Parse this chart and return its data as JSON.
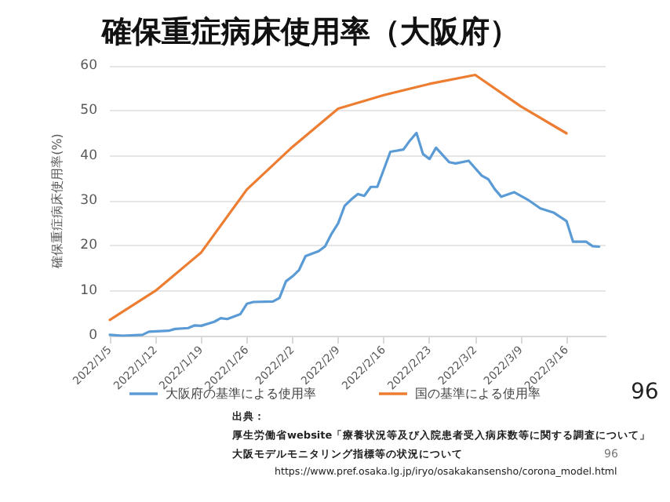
{
  "chart_data": {
    "type": "line",
    "title": "確保重症病床使用率（大阪府）",
    "ylabel": "確保重症病床使用率(%)",
    "xlim": [
      "2022-01-05",
      "2022-03-22"
    ],
    "xticks": [
      {
        "value": "2022-01-05",
        "label": "2022/1/5"
      },
      {
        "value": "2022-01-12",
        "label": "2022/1/12"
      },
      {
        "value": "2022-01-19",
        "label": "2022/1/19"
      },
      {
        "value": "2022-01-26",
        "label": "2022/1/26"
      },
      {
        "value": "2022-02-02",
        "label": "2022/2/2"
      },
      {
        "value": "2022-02-09",
        "label": "2022/2/9"
      },
      {
        "value": "2022-02-16",
        "label": "2022/2/16"
      },
      {
        "value": "2022-02-23",
        "label": "2022/2/23"
      },
      {
        "value": "2022-03-02",
        "label": "2022/3/2"
      },
      {
        "value": "2022-03-09",
        "label": "2022/3/9"
      },
      {
        "value": "2022-03-16",
        "label": "2022/3/16"
      }
    ],
    "ylim": [
      0,
      60
    ],
    "yticks": [
      0,
      10,
      20,
      30,
      40,
      50,
      60
    ],
    "grid": "y",
    "legend": "bottom",
    "marker": "none",
    "line_style": "solid",
    "series": [
      {
        "name": "大阪府の基準による使用率",
        "color": "#5b9bd5",
        "x": [
          "2022-01-05",
          "2022-01-07",
          "2022-01-10",
          "2022-01-11",
          "2022-01-14",
          "2022-01-15",
          "2022-01-17",
          "2022-01-18",
          "2022-01-19",
          "2022-01-21",
          "2022-01-22",
          "2022-01-23",
          "2022-01-25",
          "2022-01-26",
          "2022-01-27",
          "2022-01-30",
          "2022-01-31",
          "2022-02-01",
          "2022-02-02",
          "2022-02-03",
          "2022-02-04",
          "2022-02-06",
          "2022-02-07",
          "2022-02-08",
          "2022-02-09",
          "2022-02-10",
          "2022-02-11",
          "2022-02-12",
          "2022-02-13",
          "2022-02-14",
          "2022-02-15",
          "2022-02-17",
          "2022-02-19",
          "2022-02-20",
          "2022-02-21",
          "2022-02-22",
          "2022-02-23",
          "2022-02-24",
          "2022-02-26",
          "2022-02-27",
          "2022-03-01",
          "2022-03-03",
          "2022-03-04",
          "2022-03-05",
          "2022-03-06",
          "2022-03-08",
          "2022-03-10",
          "2022-03-12",
          "2022-03-14",
          "2022-03-16",
          "2022-03-17",
          "2022-03-19",
          "2022-03-20",
          "2022-03-21"
        ],
        "values": [
          0.2,
          0,
          0.2,
          0.9,
          1.1,
          1.5,
          1.7,
          2.3,
          2.2,
          3.1,
          3.9,
          3.7,
          4.8,
          7.1,
          7.5,
          7.6,
          8.4,
          12.1,
          13.2,
          14.6,
          17.7,
          18.8,
          19.9,
          22.7,
          25,
          28.9,
          30.3,
          31.5,
          31.1,
          33.1,
          33.1,
          40.9,
          41.4,
          43.4,
          45.1,
          40.4,
          39.3,
          41.8,
          38.6,
          38.3,
          38.9,
          35.6,
          34.8,
          32.6,
          30.9,
          31.9,
          30.3,
          28.3,
          27.4,
          25.5,
          20.9,
          20.9,
          19.9,
          19.8
        ]
      },
      {
        "name": "国の基準による使用率",
        "color": "#ed7d31",
        "x": [
          "2022-01-05",
          "2022-01-12",
          "2022-01-19",
          "2022-01-26",
          "2022-02-02",
          "2022-02-09",
          "2022-02-16",
          "2022-02-23",
          "2022-03-02",
          "2022-03-09",
          "2022-03-16"
        ],
        "values": [
          3.5,
          10,
          18.5,
          32.5,
          42,
          50.5,
          53.5,
          56,
          58,
          51,
          45
        ]
      }
    ],
    "annotations": [
      "出典：",
      "厚生労働省website「療養状況等及び入院患者受入病床数等に関する調査について」",
      "大阪モデルモニタリング指標等の状況について",
      "https://www.pref.osaka.lg.jp/iryo/osakakansensho/corona_model.html",
      "96",
      "96"
    ]
  }
}
